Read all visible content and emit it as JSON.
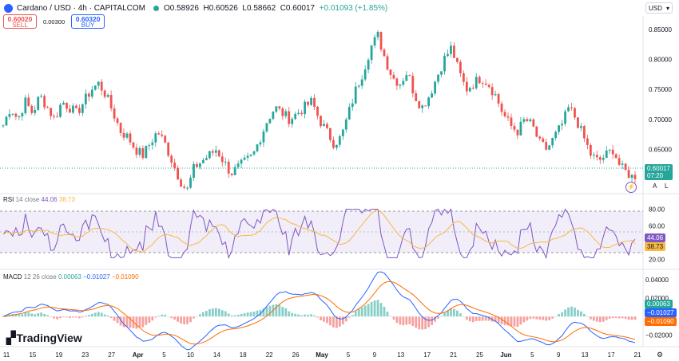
{
  "header": {
    "symbol": "Cardano / USD · 4h · CAPITALCOM",
    "open": "O0.58926",
    "high": "H0.60526",
    "low": "L0.58662",
    "close": "C0.60017",
    "change": "+0.01093 (+1.85%)"
  },
  "trade": {
    "sell_price": "0.60020",
    "sell_label": "SELL",
    "spread": "0.00300",
    "buy_price": "0.60320",
    "buy_label": "BUY"
  },
  "currency": "USD",
  "price_scale": {
    "labels": [
      "0.85000",
      "0.80000",
      "0.75000",
      "0.70000",
      "0.65000"
    ],
    "current_price": "0.60017",
    "countdown": "07:20",
    "buttons": [
      "A",
      "L"
    ]
  },
  "rsi": {
    "label": "RSI",
    "params": "14 close",
    "value": "44.06",
    "ma_value": "38.73",
    "scale": [
      "80.00",
      "60.00",
      "20.00"
    ]
  },
  "macd": {
    "label": "MACD",
    "params": "12 26 close",
    "hist": "0.00063",
    "macd": "−0.01027",
    "signal": "−0.01090",
    "scale": [
      "0.04000",
      "0.02000",
      "−0.02000"
    ]
  },
  "time_axis": [
    "11",
    "15",
    "19",
    "23",
    "27",
    "Apr",
    "5",
    "10",
    "14",
    "18",
    "22",
    "26",
    "May",
    "5",
    "9",
    "13",
    "17",
    "21",
    "25",
    "Jun",
    "5",
    "9",
    "13",
    "17",
    "21"
  ],
  "brand": "TradingView",
  "colors": {
    "up": "#26a69a",
    "down": "#ef5350",
    "rsi": "#7e57c2",
    "rsi_ma": "#f5b942",
    "macd": "#2962ff",
    "signal": "#ff6d00"
  },
  "chart_data": {
    "type": "line",
    "title": "Cardano / USD · 4h · CAPITALCOM",
    "x_ticks": [
      "11",
      "15",
      "19",
      "23",
      "27",
      "Apr",
      "5",
      "10",
      "14",
      "18",
      "22",
      "26",
      "May",
      "5",
      "9",
      "13",
      "17",
      "21",
      "25",
      "Jun",
      "5",
      "9",
      "13",
      "17",
      "21"
    ],
    "price_closes": [
      0.69,
      0.72,
      0.7,
      0.73,
      0.71,
      0.74,
      0.72,
      0.7,
      0.73,
      0.72,
      0.71,
      0.73,
      0.75,
      0.76,
      0.74,
      0.71,
      0.68,
      0.67,
      0.65,
      0.64,
      0.66,
      0.68,
      0.66,
      0.63,
      0.6,
      0.58,
      0.62,
      0.63,
      0.64,
      0.65,
      0.63,
      0.61,
      0.62,
      0.63,
      0.64,
      0.67,
      0.7,
      0.72,
      0.71,
      0.7,
      0.71,
      0.72,
      0.73,
      0.7,
      0.68,
      0.66,
      0.67,
      0.71,
      0.75,
      0.78,
      0.82,
      0.84,
      0.8,
      0.77,
      0.76,
      0.78,
      0.74,
      0.72,
      0.74,
      0.77,
      0.8,
      0.82,
      0.78,
      0.75,
      0.76,
      0.77,
      0.76,
      0.74,
      0.71,
      0.69,
      0.68,
      0.7,
      0.69,
      0.66,
      0.65,
      0.67,
      0.69,
      0.72,
      0.7,
      0.67,
      0.64,
      0.63,
      0.64,
      0.65,
      0.62,
      0.61,
      0.6
    ],
    "ylim": [
      0.58,
      0.87
    ],
    "last_close": 0.60017,
    "rsi_ylim": [
      10,
      90
    ],
    "macd_ylim": [
      -0.03,
      0.045
    ]
  }
}
